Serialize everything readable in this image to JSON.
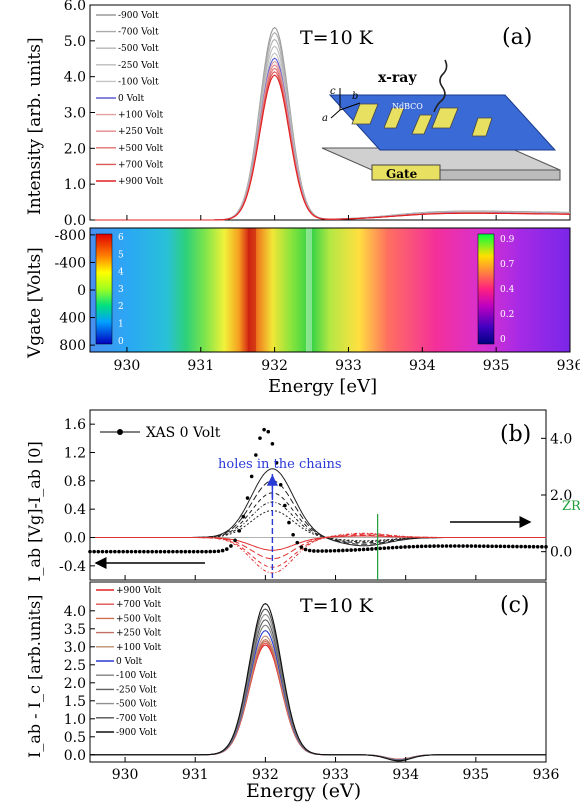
{
  "panels": {
    "a": {
      "tag": "(a)",
      "temp": "T=10 K",
      "ylabel": "Intensity [arb. units]",
      "yticks": [
        "0.0",
        "1.0",
        "2.0",
        "3.0",
        "4.0",
        "5.0",
        "6.0"
      ],
      "legend": [
        "-900 Volt",
        "-700 Volt",
        "-500 Volt",
        "-250 Volt",
        "-100 Volt",
        "0 Volt",
        "+100 Volt",
        "+250 Volt",
        "+500 Volt",
        "+700 Volt",
        "+900 Volt"
      ],
      "inset": {
        "xray": "x-ray",
        "sample": "NdBCO",
        "gate": "Gate",
        "axis_c": "c",
        "axis_b": "b",
        "axis_a": "a"
      }
    },
    "a_map": {
      "ylabel": "Vgate [Volts]",
      "yticks": [
        "-800",
        "-400",
        "0",
        "400",
        "800"
      ],
      "xlabel": "Energy [eV]",
      "xticks": [
        "930",
        "931",
        "932",
        "933",
        "934",
        "935",
        "936"
      ],
      "cbar_left": [
        "6",
        "5",
        "4",
        "3",
        "2",
        "1",
        "0"
      ],
      "cbar_right": [
        "0.9",
        "0.7",
        "0.4",
        "0.2",
        "0"
      ]
    },
    "b": {
      "tag": "(b)",
      "ylabel": "I_ab [Vg]-I_ab [0]",
      "yticks_left": [
        "-0.4",
        "0.0",
        "0.4",
        "0.8",
        "1.2",
        "1.6"
      ],
      "yticks_right": [
        "0.0",
        "2.0",
        "4.0"
      ],
      "legend": "XAS  0 Volt",
      "annot_holes": "holes  in the chains",
      "annot_zr": "ZR"
    },
    "c": {
      "tag": "(c)",
      "temp": "T=10 K",
      "ylabel": "I_ab - I_c [arb.units]",
      "yticks": [
        "0.0",
        "0.5",
        "1.0",
        "1.5",
        "2.0",
        "2.5",
        "3.0",
        "3.5",
        "4.0"
      ],
      "xlabel": "Energy (eV)",
      "xticks": [
        "930",
        "931",
        "932",
        "933",
        "934",
        "935",
        "936"
      ],
      "legend": [
        "+900 Volt",
        "+700 Volt",
        "+500 Volt",
        "+250 Volt",
        "+100 Volt",
        "0 Volt",
        "-100 Volt",
        "-250 Volt",
        "-500 Volt",
        "-700 Volt",
        "-900 Volt"
      ]
    }
  },
  "chart_data": [
    {
      "type": "line",
      "panel": "a",
      "xlabel": "Energy [eV]",
      "ylabel": "Intensity [arb. units]",
      "xlim": [
        929.5,
        936
      ],
      "ylim": [
        0,
        6
      ],
      "peak_x": 932.0,
      "series": [
        {
          "name": "-900 Volt",
          "peak": 5.65,
          "color": "#9a9a9a"
        },
        {
          "name": "-700 Volt",
          "peak": 5.5,
          "color": "#aaaaaa"
        },
        {
          "name": "-500 Volt",
          "peak": 5.3,
          "color": "#b4b4b4"
        },
        {
          "name": "-250 Volt",
          "peak": 5.1,
          "color": "#bcbcbc"
        },
        {
          "name": "-100 Volt",
          "peak": 4.9,
          "color": "#c4c4c4"
        },
        {
          "name": "0 Volt",
          "peak": 4.75,
          "color": "#5b5bd6"
        },
        {
          "name": "+100 Volt",
          "peak": 4.65,
          "color": "#e8a0a0"
        },
        {
          "name": "+250 Volt",
          "peak": 4.55,
          "color": "#e48a8a"
        },
        {
          "name": "+500 Volt",
          "peak": 4.45,
          "color": "#e07070"
        },
        {
          "name": "+700 Volt",
          "peak": 4.35,
          "color": "#dc5858"
        },
        {
          "name": "+900 Volt",
          "peak": 4.25,
          "color": "#e02020"
        }
      ]
    },
    {
      "type": "heatmap",
      "panel": "a_map",
      "xlabel": "Energy [eV]",
      "ylabel": "Vgate [Volts]",
      "xlim": [
        929.5,
        936
      ],
      "ylim": [
        -900,
        900
      ]
    },
    {
      "type": "line",
      "panel": "b",
      "xlim": [
        929.5,
        936
      ],
      "ylim": [
        -0.6,
        1.8
      ],
      "y2lim": [
        -1.0,
        5.0
      ],
      "xas": {
        "name": "XAS  0 Volt",
        "peak_x": 932.0,
        "peak": 4.55,
        "axis": "right"
      },
      "neg_series_peaks": [
        0.97,
        0.8,
        0.63,
        0.5,
        0.38
      ],
      "pos_series_peaks": [
        -0.18,
        -0.3,
        -0.42,
        -0.5
      ],
      "holes_x": 932.1,
      "zr_x": 933.6
    },
    {
      "type": "line",
      "panel": "c",
      "xlabel": "Energy (eV)",
      "ylabel": "I_ab - I_c [arb.units]",
      "xlim": [
        929.5,
        936
      ],
      "ylim": [
        -0.2,
        4.8
      ],
      "peak_x": 932.0,
      "series": [
        {
          "name": "+900 Volt",
          "peak": 3.05,
          "color": "#e02020"
        },
        {
          "name": "+700 Volt",
          "peak": 3.1,
          "color": "#e05050"
        },
        {
          "name": "+500 Volt",
          "peak": 3.15,
          "color": "#d07050"
        },
        {
          "name": "+250 Volt",
          "peak": 3.2,
          "color": "#c07060"
        },
        {
          "name": "+100 Volt",
          "peak": 3.3,
          "color": "#c09070"
        },
        {
          "name": "0 Volt",
          "peak": 3.45,
          "color": "#2a3ad6"
        },
        {
          "name": "-100 Volt",
          "peak": 3.6,
          "color": "#808080"
        },
        {
          "name": "-250 Volt",
          "peak": 3.75,
          "color": "#606060"
        },
        {
          "name": "-500 Volt",
          "peak": 3.9,
          "color": "#909090"
        },
        {
          "name": "-700 Volt",
          "peak": 4.05,
          "color": "#505050"
        },
        {
          "name": "-900 Volt",
          "peak": 4.2,
          "color": "#111111"
        }
      ]
    }
  ]
}
